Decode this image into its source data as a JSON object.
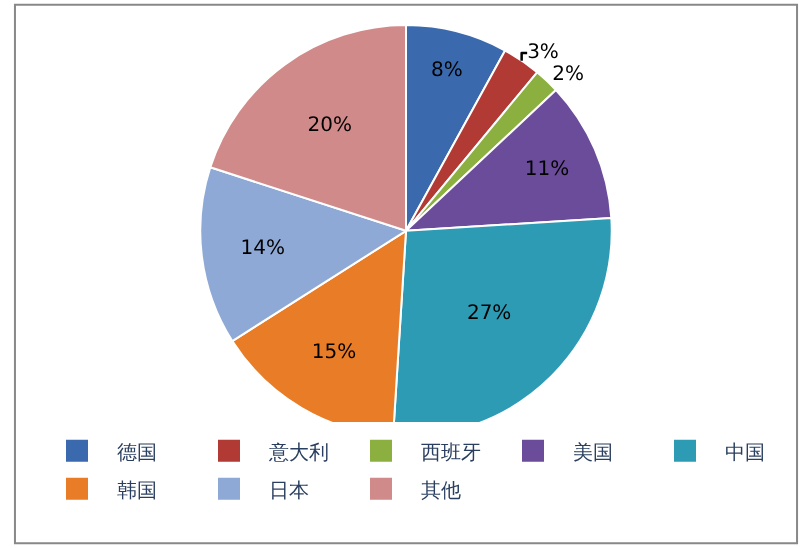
{
  "chart_data": {
    "type": "pie",
    "categories": [
      "德国",
      "意大利",
      "西班牙",
      "美国",
      "中国",
      "韩国",
      "日本",
      "其他"
    ],
    "values": [
      8,
      3,
      2,
      11,
      27,
      15,
      14,
      20
    ],
    "value_labels": [
      "8%",
      "3%",
      "2%",
      "11%",
      "27%",
      "15%",
      "14%",
      "20%"
    ],
    "colors": [
      "#3a6aad",
      "#b23a35",
      "#8cb040",
      "#6b4c9a",
      "#2e9bb5",
      "#e97c26",
      "#8ea9d6",
      "#d08a89"
    ],
    "legend": "bottom"
  }
}
